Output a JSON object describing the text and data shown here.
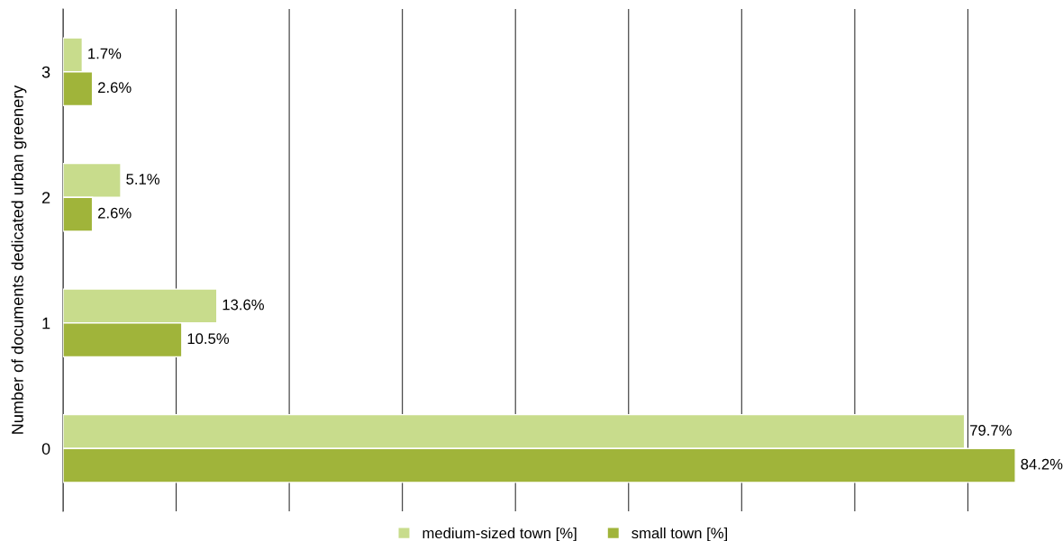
{
  "chart_data": {
    "type": "bar",
    "orientation": "horizontal",
    "ylabel": "Number of documents dedicated urban greenery",
    "categories": [
      "3",
      "2",
      "1",
      "0"
    ],
    "series": [
      {
        "name": "medium-sized town [%]",
        "color": "#c8dc8c",
        "values": [
          1.7,
          5.1,
          13.6,
          79.7
        ],
        "value_labels": [
          "1.7%",
          "5.1%",
          "13.6%",
          "79.7%"
        ]
      },
      {
        "name": "small town [%]",
        "color": "#a0b43a",
        "values": [
          2.6,
          2.6,
          10.5,
          84.2
        ],
        "value_labels": [
          "2.6%",
          "2.6%",
          "10.5%",
          "84.2%"
        ]
      }
    ],
    "xticks": [
      {
        "value": 0,
        "label": null
      },
      {
        "value": 10,
        "label": null
      },
      {
        "value": 20,
        "label": null
      },
      {
        "value": 30,
        "label": null
      },
      {
        "value": 40,
        "label": null
      },
      {
        "value": 50,
        "label": null
      },
      {
        "value": 60,
        "label": null
      },
      {
        "value": 70,
        "label": null
      },
      {
        "value": 80,
        "label": null
      }
    ],
    "tick_labels": "y",
    "grid": "x",
    "legend": "bottom"
  }
}
